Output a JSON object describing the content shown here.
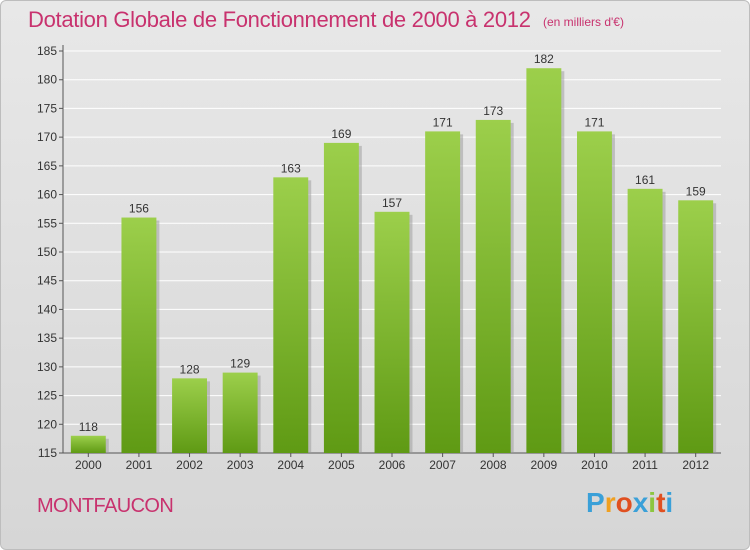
{
  "header": {
    "title": "Dotation Globale de Fonctionnement de 2000 à 2012",
    "subtitle": "(en milliers d'€)"
  },
  "footer": {
    "place": "MONTFAUCON",
    "logo_letters": [
      "P",
      "r",
      "o",
      "x",
      "i",
      "t",
      "i"
    ],
    "logo_colors": [
      "#3aa0d8",
      "#f0a020",
      "#e05020",
      "#3aa0d8",
      "#8cc63f",
      "#e05020",
      "#3aa0d8"
    ]
  },
  "colors": {
    "title": "#c8326e",
    "bar_top": "#9ccf4b",
    "bar_bottom": "#5f9a14",
    "grid": "#ffffff",
    "axis_text": "#333333"
  },
  "chart_data": {
    "type": "bar",
    "categories": [
      "2000",
      "2001",
      "2002",
      "2003",
      "2004",
      "2005",
      "2006",
      "2007",
      "2008",
      "2009",
      "2010",
      "2011",
      "2012"
    ],
    "values": [
      118,
      156,
      128,
      129,
      163,
      169,
      157,
      171,
      173,
      182,
      171,
      161,
      159
    ],
    "yticks": [
      115,
      120,
      125,
      130,
      135,
      140,
      145,
      150,
      155,
      160,
      165,
      170,
      175,
      180,
      185
    ],
    "ylim": [
      115,
      185
    ],
    "title": "Dotation Globale de Fonctionnement de 2000 à 2012",
    "xlabel": "",
    "ylabel": "",
    "grid": true
  }
}
